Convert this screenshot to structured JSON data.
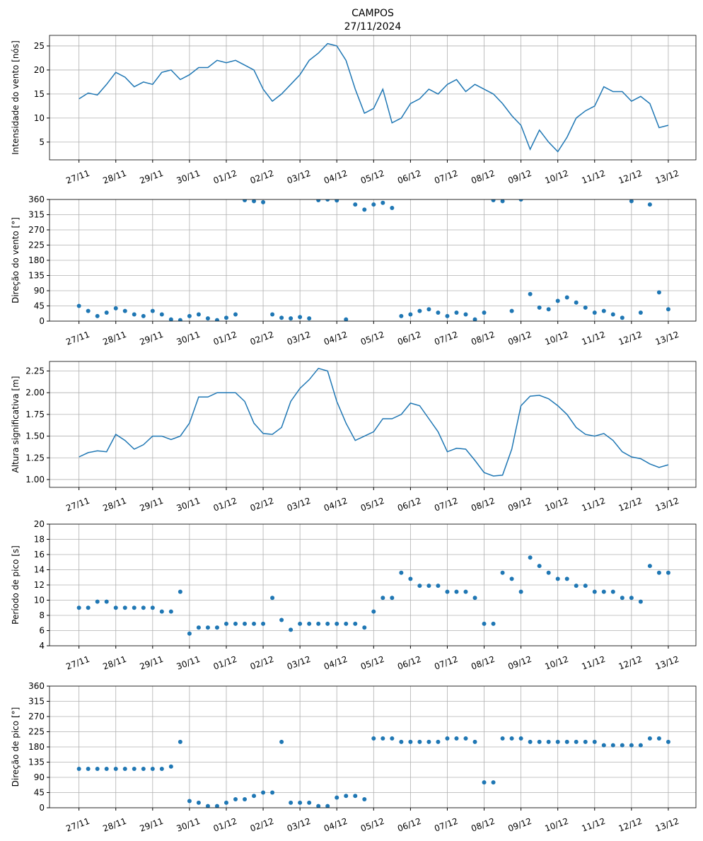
{
  "chart_data": [
    {
      "type": "line",
      "title": "CAMPOS",
      "subtitle": "27/11/2024",
      "ylabel": "Intensidade do vento [nós]",
      "color": "#1f77b4",
      "grid": true,
      "x": [
        0,
        0.25,
        0.5,
        0.75,
        1,
        1.25,
        1.5,
        1.75,
        2,
        2.25,
        2.5,
        2.75,
        3,
        3.25,
        3.5,
        3.75,
        4,
        4.25,
        4.5,
        4.75,
        5,
        5.25,
        5.5,
        5.75,
        6,
        6.25,
        6.5,
        6.75,
        7,
        7.25,
        7.5,
        7.75,
        8,
        8.25,
        8.5,
        8.75,
        9,
        9.25,
        9.5,
        9.75,
        10,
        10.25,
        10.5,
        10.75,
        11,
        11.25,
        11.5,
        11.75,
        12,
        12.25,
        12.5,
        12.75,
        13,
        13.25,
        13.5,
        13.75,
        14,
        14.25,
        14.5,
        14.75,
        15,
        15.25,
        15.5,
        15.75,
        16
      ],
      "values": [
        14,
        15.2,
        14.8,
        17,
        19.5,
        18.5,
        16.5,
        17.5,
        17,
        19.5,
        20,
        18,
        19,
        20.5,
        20.5,
        22,
        21.5,
        22,
        21,
        20,
        16,
        13.5,
        15,
        17,
        19,
        22,
        23.5,
        25.5,
        25,
        22,
        16,
        11,
        12,
        16,
        9,
        10,
        13,
        14,
        16,
        15,
        17,
        18,
        15.5,
        17,
        16,
        15,
        13,
        10.5,
        8.5,
        3.5,
        7.5,
        5,
        3,
        6,
        10,
        11.5,
        12.5,
        16.5,
        15.5,
        15.5,
        13.5,
        14.5,
        13,
        8,
        8.5
      ],
      "xlim": [
        -0.8,
        16.75
      ],
      "ylim": [
        1.3,
        27.2
      ],
      "yticks": [
        5,
        10,
        15,
        20,
        25
      ],
      "xticks": [
        {
          "value": 0,
          "label": "27/11"
        },
        {
          "value": 1,
          "label": "28/11"
        },
        {
          "value": 2,
          "label": "29/11"
        },
        {
          "value": 3,
          "label": "30/11"
        },
        {
          "value": 4,
          "label": "01/12"
        },
        {
          "value": 5,
          "label": "02/12"
        },
        {
          "value": 6,
          "label": "03/12"
        },
        {
          "value": 7,
          "label": "04/12"
        },
        {
          "value": 8,
          "label": "05/12"
        },
        {
          "value": 9,
          "label": "06/12"
        },
        {
          "value": 10,
          "label": "07/12"
        },
        {
          "value": 11,
          "label": "08/12"
        },
        {
          "value": 12,
          "label": "09/12"
        },
        {
          "value": 13,
          "label": "10/12"
        },
        {
          "value": 14,
          "label": "11/12"
        },
        {
          "value": 15,
          "label": "12/12"
        },
        {
          "value": 16,
          "label": "13/12"
        }
      ]
    },
    {
      "type": "scatter",
      "ylabel": "Direção do vento [°]",
      "color": "#1f77b4",
      "grid": true,
      "x": [
        0,
        0.25,
        0.5,
        0.75,
        1,
        1.25,
        1.5,
        1.75,
        2,
        2.25,
        2.5,
        2.75,
        3,
        3.25,
        3.5,
        3.75,
        4,
        4.25,
        4.5,
        4.75,
        5,
        5.25,
        5.5,
        5.75,
        6,
        6.25,
        6.5,
        6.75,
        7,
        7.25,
        7.5,
        7.75,
        8,
        8.25,
        8.5,
        8.75,
        9,
        9.25,
        9.5,
        9.75,
        10,
        10.25,
        10.5,
        10.75,
        11,
        11.25,
        11.5,
        11.75,
        12,
        12.25,
        12.5,
        12.75,
        13,
        13.25,
        13.5,
        13.75,
        14,
        14.25,
        14.5,
        14.75,
        15,
        15.25,
        15.5,
        15.75,
        16
      ],
      "values": [
        45,
        30,
        15,
        25,
        38,
        30,
        20,
        15,
        30,
        20,
        5,
        3,
        15,
        20,
        8,
        3,
        10,
        20,
        358,
        355,
        352,
        20,
        10,
        8,
        12,
        8,
        358,
        360,
        357,
        5,
        345,
        330,
        345,
        350,
        335,
        15,
        20,
        30,
        35,
        25,
        15,
        25,
        20,
        5,
        25,
        358,
        355,
        30,
        360,
        80,
        40,
        35,
        60,
        70,
        55,
        40,
        25,
        30,
        20,
        10,
        355,
        25,
        345,
        85,
        35
      ],
      "xlim": [
        -0.8,
        16.75
      ],
      "ylim": [
        0,
        360
      ],
      "yticks": [
        0,
        45,
        90,
        135,
        180,
        225,
        270,
        315,
        360
      ],
      "xticks": [
        {
          "value": 0,
          "label": "27/11"
        },
        {
          "value": 1,
          "label": "28/11"
        },
        {
          "value": 2,
          "label": "29/11"
        },
        {
          "value": 3,
          "label": "30/11"
        },
        {
          "value": 4,
          "label": "01/12"
        },
        {
          "value": 5,
          "label": "02/12"
        },
        {
          "value": 6,
          "label": "03/12"
        },
        {
          "value": 7,
          "label": "04/12"
        },
        {
          "value": 8,
          "label": "05/12"
        },
        {
          "value": 9,
          "label": "06/12"
        },
        {
          "value": 10,
          "label": "07/12"
        },
        {
          "value": 11,
          "label": "08/12"
        },
        {
          "value": 12,
          "label": "09/12"
        },
        {
          "value": 13,
          "label": "10/12"
        },
        {
          "value": 14,
          "label": "11/12"
        },
        {
          "value": 15,
          "label": "12/12"
        },
        {
          "value": 16,
          "label": "13/12"
        }
      ]
    },
    {
      "type": "line",
      "ylabel": "Altura significativa [m]",
      "color": "#1f77b4",
      "grid": true,
      "x": [
        0,
        0.25,
        0.5,
        0.75,
        1,
        1.25,
        1.5,
        1.75,
        2,
        2.25,
        2.5,
        2.75,
        3,
        3.25,
        3.5,
        3.75,
        4,
        4.25,
        4.5,
        4.75,
        5,
        5.25,
        5.5,
        5.75,
        6,
        6.25,
        6.5,
        6.75,
        7,
        7.25,
        7.5,
        7.75,
        8,
        8.25,
        8.5,
        8.75,
        9,
        9.25,
        9.5,
        9.75,
        10,
        10.25,
        10.5,
        10.75,
        11,
        11.25,
        11.5,
        11.75,
        12,
        12.25,
        12.5,
        12.75,
        13,
        13.25,
        13.5,
        13.75,
        14,
        14.25,
        14.5,
        14.75,
        15,
        15.25,
        15.5,
        15.75,
        16
      ],
      "values": [
        1.26,
        1.31,
        1.33,
        1.32,
        1.52,
        1.45,
        1.35,
        1.4,
        1.5,
        1.5,
        1.46,
        1.5,
        1.65,
        1.95,
        1.95,
        2,
        2,
        2,
        1.9,
        1.65,
        1.53,
        1.52,
        1.6,
        1.9,
        2.05,
        2.15,
        2.28,
        2.25,
        1.9,
        1.65,
        1.45,
        1.5,
        1.55,
        1.7,
        1.7,
        1.75,
        1.88,
        1.85,
        1.7,
        1.55,
        1.32,
        1.36,
        1.35,
        1.22,
        1.08,
        1.04,
        1.05,
        1.35,
        1.85,
        1.96,
        1.97,
        1.93,
        1.85,
        1.75,
        1.6,
        1.52,
        1.5,
        1.53,
        1.45,
        1.32,
        1.26,
        1.24,
        1.18,
        1.14,
        1.17
      ],
      "xlim": [
        -0.8,
        16.75
      ],
      "ylim": [
        0.91,
        2.36
      ],
      "yticks": [
        {
          "value": 1,
          "label": "1.00"
        },
        {
          "value": 1.25,
          "label": "1.25"
        },
        {
          "value": 1.5,
          "label": "1.50"
        },
        {
          "value": 1.75,
          "label": "1.75"
        },
        {
          "value": 2,
          "label": "2.00"
        },
        {
          "value": 2.25,
          "label": "2.25"
        }
      ],
      "xticks": [
        {
          "value": 0,
          "label": "27/11"
        },
        {
          "value": 1,
          "label": "28/11"
        },
        {
          "value": 2,
          "label": "29/11"
        },
        {
          "value": 3,
          "label": "30/11"
        },
        {
          "value": 4,
          "label": "01/12"
        },
        {
          "value": 5,
          "label": "02/12"
        },
        {
          "value": 6,
          "label": "03/12"
        },
        {
          "value": 7,
          "label": "04/12"
        },
        {
          "value": 8,
          "label": "05/12"
        },
        {
          "value": 9,
          "label": "06/12"
        },
        {
          "value": 10,
          "label": "07/12"
        },
        {
          "value": 11,
          "label": "08/12"
        },
        {
          "value": 12,
          "label": "09/12"
        },
        {
          "value": 13,
          "label": "10/12"
        },
        {
          "value": 14,
          "label": "11/12"
        },
        {
          "value": 15,
          "label": "12/12"
        },
        {
          "value": 16,
          "label": "13/12"
        }
      ]
    },
    {
      "type": "scatter",
      "ylabel": "Período de pico [s]",
      "color": "#1f77b4",
      "grid": true,
      "x": [
        0,
        0.25,
        0.5,
        0.75,
        1,
        1.25,
        1.5,
        1.75,
        2,
        2.25,
        2.5,
        2.75,
        3,
        3.25,
        3.5,
        3.75,
        4,
        4.25,
        4.5,
        4.75,
        5,
        5.25,
        5.5,
        5.75,
        6,
        6.25,
        6.5,
        6.75,
        7,
        7.25,
        7.5,
        7.75,
        8,
        8.25,
        8.5,
        8.75,
        9,
        9.25,
        9.5,
        9.75,
        10,
        10.25,
        10.5,
        10.75,
        11,
        11.25,
        11.5,
        11.75,
        12,
        12.25,
        12.5,
        12.75,
        13,
        13.25,
        13.5,
        13.75,
        14,
        14.25,
        14.5,
        14.75,
        15,
        15.25,
        15.5,
        15.75,
        16
      ],
      "values": [
        9,
        9,
        9.8,
        9.8,
        9,
        9,
        9,
        9,
        9,
        8.5,
        8.5,
        11.1,
        5.6,
        6.4,
        6.4,
        6.4,
        6.9,
        6.9,
        6.9,
        6.9,
        6.9,
        10.3,
        7.4,
        6.1,
        6.9,
        6.9,
        6.9,
        6.9,
        6.9,
        6.9,
        6.9,
        6.4,
        8.5,
        10.3,
        10.3,
        13.6,
        12.8,
        11.9,
        11.9,
        11.9,
        11.1,
        11.1,
        11.1,
        10.3,
        6.9,
        6.9,
        13.6,
        12.8,
        11.1,
        15.6,
        14.5,
        13.6,
        12.8,
        12.8,
        11.9,
        11.9,
        11.1,
        11.1,
        11.1,
        10.3,
        10.3,
        9.8,
        14.5,
        13.6,
        13.6
      ],
      "xlim": [
        -0.8,
        16.75
      ],
      "ylim": [
        4,
        20
      ],
      "yticks": [
        4,
        6,
        8,
        10,
        12,
        14,
        16,
        18,
        20
      ],
      "xticks": [
        {
          "value": 0,
          "label": "27/11"
        },
        {
          "value": 1,
          "label": "28/11"
        },
        {
          "value": 2,
          "label": "29/11"
        },
        {
          "value": 3,
          "label": "30/11"
        },
        {
          "value": 4,
          "label": "01/12"
        },
        {
          "value": 5,
          "label": "02/12"
        },
        {
          "value": 6,
          "label": "03/12"
        },
        {
          "value": 7,
          "label": "04/12"
        },
        {
          "value": 8,
          "label": "05/12"
        },
        {
          "value": 9,
          "label": "06/12"
        },
        {
          "value": 10,
          "label": "07/12"
        },
        {
          "value": 11,
          "label": "08/12"
        },
        {
          "value": 12,
          "label": "09/12"
        },
        {
          "value": 13,
          "label": "10/12"
        },
        {
          "value": 14,
          "label": "11/12"
        },
        {
          "value": 15,
          "label": "12/12"
        },
        {
          "value": 16,
          "label": "13/12"
        }
      ]
    },
    {
      "type": "scatter",
      "ylabel": "Direção de pico [°]",
      "color": "#1f77b4",
      "grid": true,
      "x": [
        0,
        0.25,
        0.5,
        0.75,
        1,
        1.25,
        1.5,
        1.75,
        2,
        2.25,
        2.5,
        2.75,
        3,
        3.25,
        3.5,
        3.75,
        4,
        4.25,
        4.5,
        4.75,
        5,
        5.25,
        5.5,
        5.75,
        6,
        6.25,
        6.5,
        6.75,
        7,
        7.25,
        7.5,
        7.75,
        8,
        8.25,
        8.5,
        8.75,
        9,
        9.25,
        9.5,
        9.75,
        10,
        10.25,
        10.5,
        10.75,
        11,
        11.25,
        11.5,
        11.75,
        12,
        12.25,
        12.5,
        12.75,
        13,
        13.25,
        13.5,
        13.75,
        14,
        14.25,
        14.5,
        14.75,
        15,
        15.25,
        15.5,
        15.75,
        16
      ],
      "values": [
        115,
        115,
        115,
        115,
        115,
        115,
        115,
        115,
        115,
        115,
        122,
        195,
        20,
        15,
        5,
        5,
        15,
        25,
        25,
        35,
        45,
        45,
        195,
        15,
        15,
        15,
        5,
        5,
        30,
        35,
        35,
        25,
        205,
        205,
        205,
        195,
        195,
        195,
        195,
        195,
        205,
        205,
        205,
        195,
        75,
        75,
        205,
        205,
        205,
        195,
        195,
        195,
        195,
        195,
        195,
        195,
        195,
        185,
        185,
        185,
        185,
        185,
        205,
        205,
        195
      ],
      "xlim": [
        -0.8,
        16.75
      ],
      "ylim": [
        0,
        360
      ],
      "yticks": [
        0,
        45,
        90,
        135,
        180,
        225,
        270,
        315,
        360
      ],
      "xticks": [
        {
          "value": 0,
          "label": "27/11"
        },
        {
          "value": 1,
          "label": "28/11"
        },
        {
          "value": 2,
          "label": "29/11"
        },
        {
          "value": 3,
          "label": "30/11"
        },
        {
          "value": 4,
          "label": "01/12"
        },
        {
          "value": 5,
          "label": "02/12"
        },
        {
          "value": 6,
          "label": "03/12"
        },
        {
          "value": 7,
          "label": "04/12"
        },
        {
          "value": 8,
          "label": "05/12"
        },
        {
          "value": 9,
          "label": "06/12"
        },
        {
          "value": 10,
          "label": "07/12"
        },
        {
          "value": 11,
          "label": "08/12"
        },
        {
          "value": 12,
          "label": "09/12"
        },
        {
          "value": 13,
          "label": "10/12"
        },
        {
          "value": 14,
          "label": "11/12"
        },
        {
          "value": 15,
          "label": "12/12"
        },
        {
          "value": 16,
          "label": "13/12"
        }
      ]
    }
  ]
}
